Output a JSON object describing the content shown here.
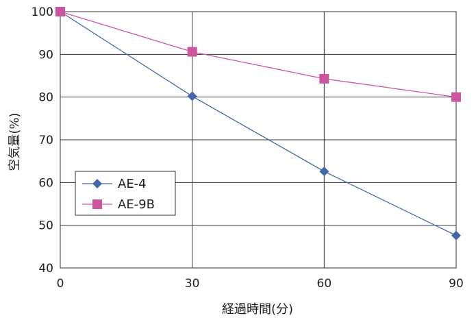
{
  "chart_data": {
    "type": "line",
    "title": "",
    "xlabel": "経過時間(分)",
    "ylabel": "空気量(%)",
    "xlim": [
      0,
      90
    ],
    "ylim": [
      40,
      100
    ],
    "x_ticks": [
      0,
      30,
      60,
      90
    ],
    "y_ticks": [
      40,
      50,
      60,
      70,
      80,
      90,
      100
    ],
    "grid": true,
    "legend_position": "left-middle",
    "x": [
      0,
      30,
      60,
      90
    ],
    "series": [
      {
        "name": "AE-4",
        "values": [
          100,
          80.2,
          62.6,
          47.6
        ],
        "color": "#4169a8",
        "marker": "diamond"
      },
      {
        "name": "AE-9B",
        "values": [
          100,
          90.6,
          84.3,
          80.0
        ],
        "color": "#cc55a0",
        "marker": "square"
      }
    ]
  }
}
